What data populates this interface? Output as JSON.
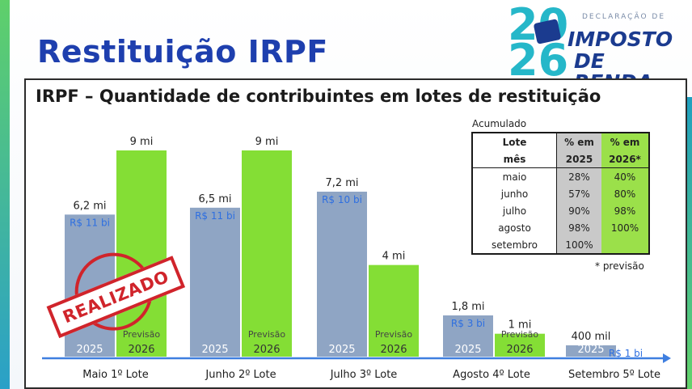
{
  "page": {
    "title": "Restituição IRPF"
  },
  "logo": {
    "declaration": "DECLARAÇÃO DE",
    "year_top": "20",
    "year_bottom": "26",
    "line1": "IMPOSTO",
    "line2": "DE RENDA"
  },
  "stamp": {
    "text": "REALIZADO"
  },
  "colors": {
    "bar_2025": "#8fa5c4",
    "bar_2026": "#84de35",
    "value_text_blue": "#2e6fe0",
    "axis_arrow": "#3f7fe0",
    "title_blue": "#1e3fae",
    "stamp_red": "#d0242b"
  },
  "chart_data": {
    "type": "bar",
    "title": "IRPF – Quantidade de contribuintes em lotes de restituição",
    "categories": [
      "Maio 1º Lote",
      "Junho 2º Lote",
      "Julho 3º Lote",
      "Agosto 4º Lote",
      "Setembro  5º Lote"
    ],
    "unit": "mi",
    "series": [
      {
        "name": "2025",
        "values": [
          6.2,
          6.5,
          7.2,
          1.8,
          0.4
        ],
        "value_labels": [
          "6,2 mi",
          "6,5 mi",
          "7,2 mi",
          "1,8 mi",
          "400 mil"
        ],
        "amount_labels": [
          "R$ 11 bi",
          "R$ 11 bi",
          "R$ 10 bi",
          "R$ 3 bi",
          "R$ 1 bi"
        ]
      },
      {
        "name": "Previsão 2026",
        "values": [
          9,
          9,
          4,
          1,
          null
        ],
        "value_labels": [
          "9 mi",
          "9 mi",
          "4 mi",
          "1 mi",
          ""
        ]
      }
    ],
    "bar_year_labels": {
      "2025": "2025",
      "2026_prefix": "Previsão",
      "2026": "2026"
    },
    "ylim": [
      0,
      10
    ]
  },
  "table": {
    "caption": "Acumulado",
    "headers": [
      [
        "Lote",
        "% em",
        "% em"
      ],
      [
        "mês",
        "2025",
        "2026*"
      ]
    ],
    "rows": [
      [
        "maio",
        "28%",
        "40%"
      ],
      [
        "junho",
        "57%",
        "80%"
      ],
      [
        "julho",
        "90%",
        "98%"
      ],
      [
        "agosto",
        "98%",
        "100%"
      ],
      [
        "setembro",
        "100%",
        ""
      ]
    ],
    "note": "* previsão"
  }
}
